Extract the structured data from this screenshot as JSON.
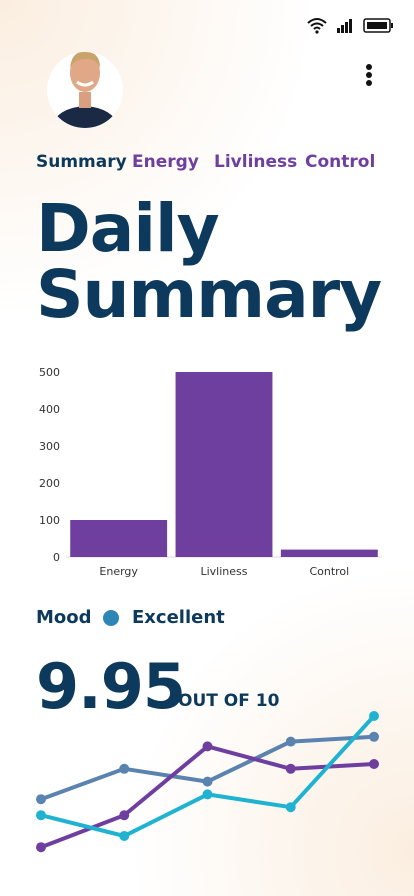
{
  "tabs": [
    "Summary",
    "Energy",
    "Livliness",
    "Control"
  ],
  "heading": "Daily Summary",
  "bar_chart": {
    "type": "bar",
    "categories": [
      "Energy",
      "Livliness",
      "Control"
    ],
    "values": [
      100,
      500,
      20
    ],
    "color": "#6f3fa0",
    "ylim": [
      0,
      500
    ],
    "yticks": [
      0,
      100,
      200,
      300,
      400,
      500
    ]
  },
  "mood": {
    "label": "Mood",
    "value": "Excellent",
    "color": "#2e86b8"
  },
  "score": {
    "value": "9.95",
    "suffix": "OUT OF 10"
  },
  "line_chart": {
    "type": "line",
    "ylim": [
      0,
      10
    ],
    "series": [
      {
        "color": "#5b83b0",
        "values": [
          3.8,
          5.7,
          4.9,
          7.4,
          7.7
        ]
      },
      {
        "color": "#6f3fa0",
        "values": [
          0.8,
          2.8,
          7.1,
          5.7,
          6.0
        ]
      },
      {
        "color": "#1fb3d1",
        "values": [
          2.8,
          1.5,
          4.1,
          3.3,
          9.0
        ]
      }
    ]
  }
}
